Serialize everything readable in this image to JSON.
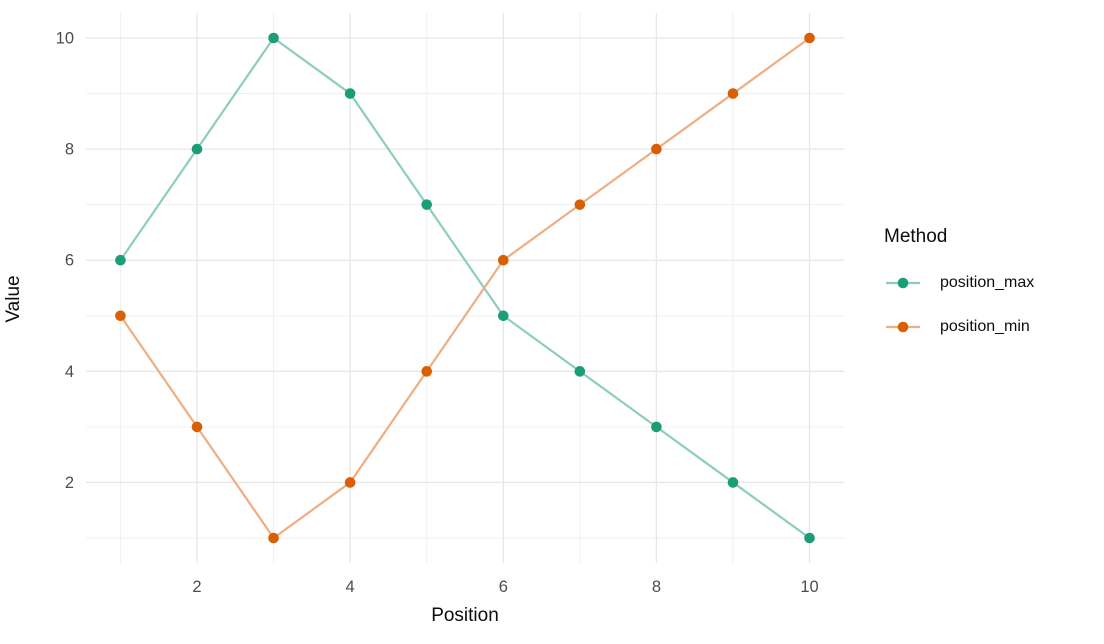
{
  "chart_data": {
    "type": "line",
    "title": "",
    "xlabel": "Position",
    "ylabel": "Value",
    "x": [
      1,
      2,
      3,
      4,
      5,
      6,
      7,
      8,
      9,
      10
    ],
    "series": [
      {
        "name": "position_max",
        "values": [
          6,
          8,
          10,
          9,
          7,
          5,
          4,
          3,
          2,
          1
        ],
        "point_color": "#1b9e77",
        "line_color": "#8dcebb"
      },
      {
        "name": "position_min",
        "values": [
          5,
          3,
          1,
          2,
          4,
          6,
          7,
          8,
          9,
          10
        ],
        "point_color": "#d95f02",
        "line_color": "#eeae82"
      }
    ],
    "x_ticks": [
      2,
      4,
      6,
      8,
      10
    ],
    "y_ticks": [
      2,
      4,
      6,
      8,
      10
    ],
    "x_minor": [
      1,
      3,
      5,
      7,
      9
    ],
    "y_minor": [
      1,
      3,
      5,
      7,
      9
    ],
    "xlim": [
      0.55,
      10.45
    ],
    "ylim": [
      0.55,
      10.45
    ],
    "grid": true,
    "legend": {
      "title": "Method",
      "position": "right"
    }
  },
  "style": {
    "grid_major_color": "#e7e7e7",
    "grid_minor_color": "#efefef",
    "tick_label_color": "#4d4d4d",
    "axis_title_color": "#0d0d0d",
    "background": "#ffffff"
  }
}
